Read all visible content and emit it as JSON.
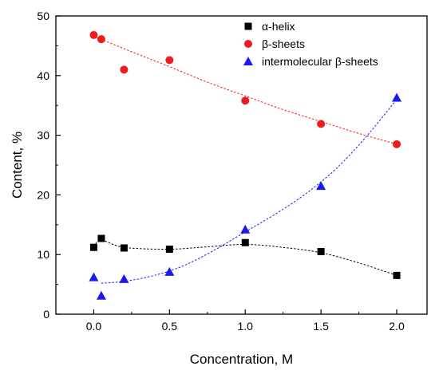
{
  "chart_data": {
    "type": "scatter",
    "title": "",
    "xlabel": "Concentration, M",
    "ylabel": "Content, %",
    "xlim": [
      -0.25,
      2.2
    ],
    "ylim": [
      0,
      50
    ],
    "xticks": [
      "0.0",
      "0.5",
      "1.0",
      "1.5",
      "2.0"
    ],
    "yticks": [
      "0",
      "10",
      "20",
      "30",
      "40",
      "50"
    ],
    "legend_position": "top-right",
    "grid": false,
    "series": [
      {
        "name": "α-helix",
        "marker": "square",
        "color": "#000000",
        "x": [
          0.0,
          0.05,
          0.2,
          0.5,
          1.0,
          1.5,
          2.0
        ],
        "y": [
          11.2,
          12.7,
          11.1,
          10.9,
          12.0,
          10.5,
          6.5
        ],
        "fit": [
          [
            0.0,
            11.3
          ],
          [
            0.05,
            12.4
          ],
          [
            0.2,
            11.2
          ],
          [
            0.5,
            10.9
          ],
          [
            0.75,
            11.3
          ],
          [
            1.0,
            11.7
          ],
          [
            1.25,
            11.2
          ],
          [
            1.5,
            10.3
          ],
          [
            1.75,
            8.6
          ],
          [
            2.0,
            6.5
          ]
        ]
      },
      {
        "name": "β-sheets",
        "marker": "circle",
        "color": "#ee1c1c",
        "x": [
          0.0,
          0.05,
          0.2,
          0.5,
          1.0,
          1.5,
          2.0
        ],
        "y": [
          46.8,
          46.1,
          41.0,
          42.6,
          35.8,
          31.9,
          28.5
        ],
        "fit": [
          [
            0.0,
            46.6
          ],
          [
            0.25,
            44.0
          ],
          [
            0.5,
            41.5
          ],
          [
            0.75,
            38.9
          ],
          [
            1.0,
            36.6
          ],
          [
            1.25,
            34.3
          ],
          [
            1.5,
            32.3
          ],
          [
            1.75,
            30.3
          ],
          [
            2.0,
            28.5
          ]
        ]
      },
      {
        "name": "intermolecular β-sheets",
        "marker": "triangle",
        "color": "#1a1aee",
        "x": [
          0.0,
          0.05,
          0.2,
          0.5,
          1.0,
          1.5,
          2.0
        ],
        "y": [
          6.2,
          3.1,
          5.9,
          7.1,
          14.2,
          21.5,
          36.3
        ],
        "fit": [
          [
            0.05,
            5.2
          ],
          [
            0.2,
            5.5
          ],
          [
            0.4,
            6.5
          ],
          [
            0.6,
            8.2
          ],
          [
            0.8,
            10.8
          ],
          [
            1.0,
            13.8
          ],
          [
            1.2,
            16.8
          ],
          [
            1.4,
            20.2
          ],
          [
            1.6,
            24.4
          ],
          [
            1.8,
            29.8
          ],
          [
            2.0,
            36.0
          ]
        ]
      }
    ]
  }
}
